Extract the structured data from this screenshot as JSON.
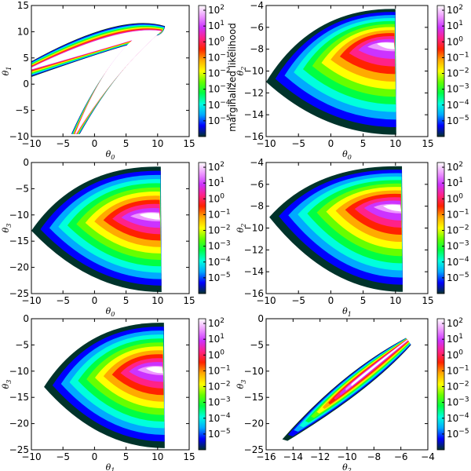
{
  "figure": {
    "colorbar_title": "marginalized likelihood"
  },
  "colormap": [
    "#00332b",
    "#0000ff",
    "#00aaff",
    "#00ffdd",
    "#00ff44",
    "#66ff00",
    "#ffff00",
    "#ffaa00",
    "#ff2200",
    "#ff2288",
    "#cc33ff",
    "#ee99ff",
    "#ffffff"
  ],
  "chart_data": [
    {
      "type": "heatmap",
      "panel": "theta0-theta1",
      "xlabel": "θ0",
      "ylabel": "θ1",
      "xlim": [
        -10,
        15
      ],
      "ylim": [
        -10,
        15
      ],
      "xticks": [
        "−10",
        "−5",
        "0",
        "5",
        "10",
        "15"
      ],
      "yticks": [
        "−10",
        "−5",
        "0",
        "5",
        "10",
        "15"
      ],
      "colorbar_ticks": [
        "10^2",
        "10^1",
        "10^0",
        "10^-1",
        "10^-2",
        "10^-3",
        "10^-4",
        "10^-5"
      ],
      "colorbar_label": "marginalized likelihood",
      "color_range_log10": [
        -6,
        2.3
      ],
      "region": {
        "shape": "banana",
        "peak_x": 8,
        "peak_y": 10
      }
    },
    {
      "type": "heatmap",
      "panel": "theta0-theta2",
      "xlabel": "θ0",
      "ylabel": "θ2",
      "xlim": [
        -10,
        15
      ],
      "ylim": [
        -16,
        -4
      ],
      "xticks": [
        "−10",
        "−5",
        "0",
        "5",
        "10",
        "15"
      ],
      "yticks": [
        "−16",
        "−14",
        "−12",
        "−10",
        "−8",
        "−6",
        "−4"
      ],
      "colorbar_ticks": [
        "10^2",
        "10^1",
        "10^0",
        "10^-1",
        "10^-2",
        "10^-3",
        "10^-4",
        "10^-5"
      ],
      "color_range_log10": [
        -6,
        2.3
      ],
      "region": {
        "shape": "fan",
        "apex_x": -10,
        "apex_y": -11,
        "peak_x": 8,
        "peak_y": -7.5,
        "cut_x": 10
      }
    },
    {
      "type": "heatmap",
      "panel": "theta0-theta3",
      "xlabel": "θ0",
      "ylabel": "θ3",
      "xlim": [
        -10,
        15
      ],
      "ylim": [
        -25,
        0
      ],
      "xticks": [
        "−10",
        "−5",
        "0",
        "5",
        "10",
        "15"
      ],
      "yticks": [
        "−25",
        "−20",
        "−15",
        "−10",
        "−5",
        "0"
      ],
      "colorbar_ticks": [
        "10^2",
        "10^1",
        "10^0",
        "10^-1",
        "10^-2",
        "10^-3",
        "10^-4",
        "10^-5"
      ],
      "color_range_log10": [
        -6,
        2.3
      ],
      "region": {
        "shape": "fan",
        "apex_x": -10,
        "apex_y": -13,
        "peak_x": 8,
        "peak_y": -10,
        "cut_x": 10.5
      }
    },
    {
      "type": "heatmap",
      "panel": "theta1-theta2",
      "xlabel": "θ1",
      "ylabel": "θ2",
      "xlim": [
        -10,
        15
      ],
      "ylim": [
        -16,
        -4
      ],
      "xticks": [
        "−10",
        "−5",
        "0",
        "5",
        "10",
        "15"
      ],
      "yticks": [
        "−16",
        "−14",
        "−12",
        "−10",
        "−8",
        "−6",
        "−4"
      ],
      "colorbar_ticks": [
        "10^2",
        "10^1",
        "10^0",
        "10^-1",
        "10^-2",
        "10^-3",
        "10^-4",
        "10^-5"
      ],
      "color_range_log10": [
        -6,
        2.3
      ],
      "region": {
        "shape": "fan",
        "apex_x": -9.5,
        "apex_y": -9,
        "peak_x": 9,
        "peak_y": -8,
        "cut_x": 11
      }
    },
    {
      "type": "heatmap",
      "panel": "theta1-theta3",
      "xlabel": "θ1",
      "ylabel": "θ3",
      "xlim": [
        -10,
        15
      ],
      "ylim": [
        -25,
        0
      ],
      "xticks": [
        "−10",
        "−5",
        "0",
        "5",
        "10",
        "15"
      ],
      "yticks": [
        "−25",
        "−20",
        "−15",
        "−10",
        "−5",
        "0"
      ],
      "colorbar_ticks": [
        "10^2",
        "10^1",
        "10^0",
        "10^-1",
        "10^-2",
        "10^-3",
        "10^-4",
        "10^-5"
      ],
      "color_range_log10": [
        -6,
        2.3
      ],
      "region": {
        "shape": "fan",
        "apex_x": -8,
        "apex_y": -13,
        "peak_x": 9,
        "peak_y": -9.5,
        "cut_x": 11
      }
    },
    {
      "type": "heatmap",
      "panel": "theta2-theta3",
      "xlabel": "θ2",
      "ylabel": "θ3",
      "xlim": [
        -16,
        -4
      ],
      "ylim": [
        -25,
        0
      ],
      "xticks": [
        "−16",
        "−14",
        "−12",
        "−10",
        "−8",
        "−6",
        "−4"
      ],
      "yticks": [
        "−25",
        "−20",
        "−15",
        "−10",
        "−5",
        "0"
      ],
      "colorbar_ticks": [
        "10^2",
        "10^1",
        "10^0",
        "10^-1",
        "10^-2",
        "10^-3",
        "10^-4",
        "10^-5"
      ],
      "color_range_log10": [
        -6,
        2.3
      ],
      "region": {
        "shape": "diagonal",
        "start_x": -14.8,
        "start_y": -23,
        "end_x": -5.5,
        "end_y": -4,
        "peak_x": -8,
        "peak_y": -7
      }
    }
  ]
}
